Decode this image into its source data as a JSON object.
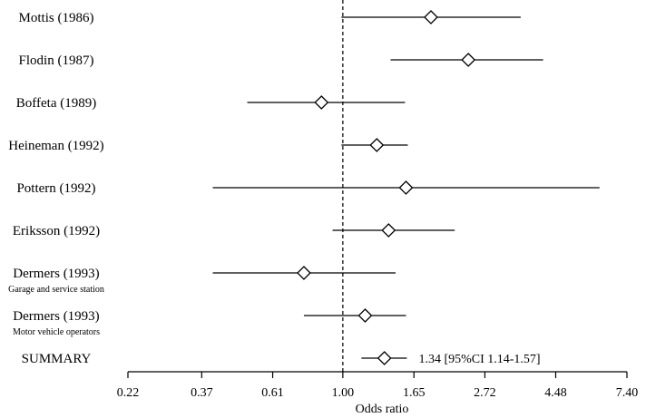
{
  "chart_data": {
    "type": "forest",
    "xlabel": "Odds ratio",
    "x_scale": "log",
    "xlim": [
      0.22,
      7.4
    ],
    "ticks": [
      "0.22",
      "0.37",
      "0.61",
      "1.00",
      "1.65",
      "2.72",
      "4.48",
      "7.40"
    ],
    "tick_values": [
      0.22,
      0.37,
      0.61,
      1.0,
      1.65,
      2.72,
      4.48,
      7.4
    ],
    "reference_line": 1.0,
    "studies": [
      {
        "label": "Mottis (1986)",
        "sublabel": "",
        "or": 1.86,
        "lo": 0.99,
        "hi": 3.5
      },
      {
        "label": "Flodin (1987)",
        "sublabel": "",
        "or": 2.42,
        "lo": 1.4,
        "hi": 4.1
      },
      {
        "label": "Boffeta (1989)",
        "sublabel": "",
        "or": 0.86,
        "lo": 0.51,
        "hi": 1.55
      },
      {
        "label": "Heineman (1992)",
        "sublabel": "",
        "or": 1.27,
        "lo": 0.99,
        "hi": 1.58
      },
      {
        "label": "Pottern (1992)",
        "sublabel": "",
        "or": 1.56,
        "lo": 0.4,
        "hi": 6.1
      },
      {
        "label": "Eriksson (1992)",
        "sublabel": "",
        "or": 1.38,
        "lo": 0.93,
        "hi": 2.2
      },
      {
        "label": "Dermers (1993)",
        "sublabel": "Garage and service station",
        "or": 0.76,
        "lo": 0.4,
        "hi": 1.45
      },
      {
        "label": "Dermers (1993)",
        "sublabel": "Motor vehicle operators",
        "or": 1.17,
        "lo": 0.76,
        "hi": 1.56
      }
    ],
    "summary": {
      "label": "SUMMARY",
      "or": 1.34,
      "lo": 1.14,
      "hi": 1.57,
      "text": "1.34 [95%CI  1.14-1.57]"
    }
  }
}
